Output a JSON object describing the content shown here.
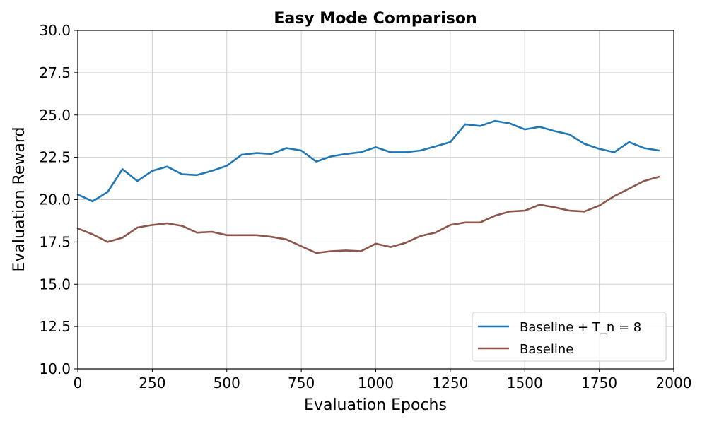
{
  "chart_data": {
    "type": "line",
    "title": "Easy Mode Comparison",
    "xlabel": "Evaluation Epochs",
    "ylabel": "Evaluation Reward",
    "xlim": [
      0,
      2000
    ],
    "ylim": [
      10,
      30
    ],
    "xticks": [
      0,
      250,
      500,
      750,
      1000,
      1250,
      1500,
      1750,
      2000
    ],
    "xtick_labels": [
      "0",
      "250",
      "500",
      "750",
      "1000",
      "1250",
      "1500",
      "1750",
      "2000"
    ],
    "yticks": [
      10,
      12.5,
      15,
      17.5,
      20,
      22.5,
      25,
      27.5,
      30
    ],
    "ytick_labels": [
      "10.0",
      "12.5",
      "15.0",
      "17.5",
      "20.0",
      "22.5",
      "25.0",
      "27.5",
      "30.0"
    ],
    "grid": true,
    "legend_position": "bottom-right",
    "x": [
      0,
      50,
      100,
      150,
      200,
      250,
      300,
      350,
      400,
      450,
      500,
      550,
      600,
      650,
      700,
      750,
      800,
      850,
      900,
      950,
      1000,
      1050,
      1100,
      1150,
      1200,
      1250,
      1300,
      1350,
      1400,
      1450,
      1500,
      1550,
      1600,
      1650,
      1700,
      1750,
      1800,
      1850,
      1900,
      1950
    ],
    "series": [
      {
        "name": "Baseline + T_n = 8",
        "color": "#1f77b4",
        "values": [
          20.3,
          19.9,
          20.45,
          21.8,
          21.1,
          21.7,
          21.95,
          21.5,
          21.45,
          21.7,
          22.0,
          22.65,
          22.75,
          22.7,
          23.05,
          22.9,
          22.25,
          22.55,
          22.7,
          22.8,
          23.1,
          22.8,
          22.8,
          22.9,
          23.15,
          23.4,
          24.45,
          24.35,
          24.65,
          24.5,
          24.15,
          24.3,
          24.05,
          23.85,
          23.3,
          23.0,
          22.8,
          23.4,
          23.05,
          22.9
        ]
      },
      {
        "name": "Baseline",
        "color": "#8c564b",
        "values": [
          18.3,
          17.95,
          17.5,
          17.75,
          18.35,
          18.5,
          18.6,
          18.45,
          18.05,
          18.1,
          17.9,
          17.9,
          17.9,
          17.8,
          17.65,
          17.25,
          16.85,
          16.95,
          17.0,
          16.95,
          17.4,
          17.2,
          17.45,
          17.85,
          18.05,
          18.5,
          18.65,
          18.65,
          19.05,
          19.3,
          19.35,
          19.7,
          19.55,
          19.35,
          19.3,
          19.65,
          20.2,
          20.65,
          21.1,
          21.35
        ]
      }
    ]
  }
}
